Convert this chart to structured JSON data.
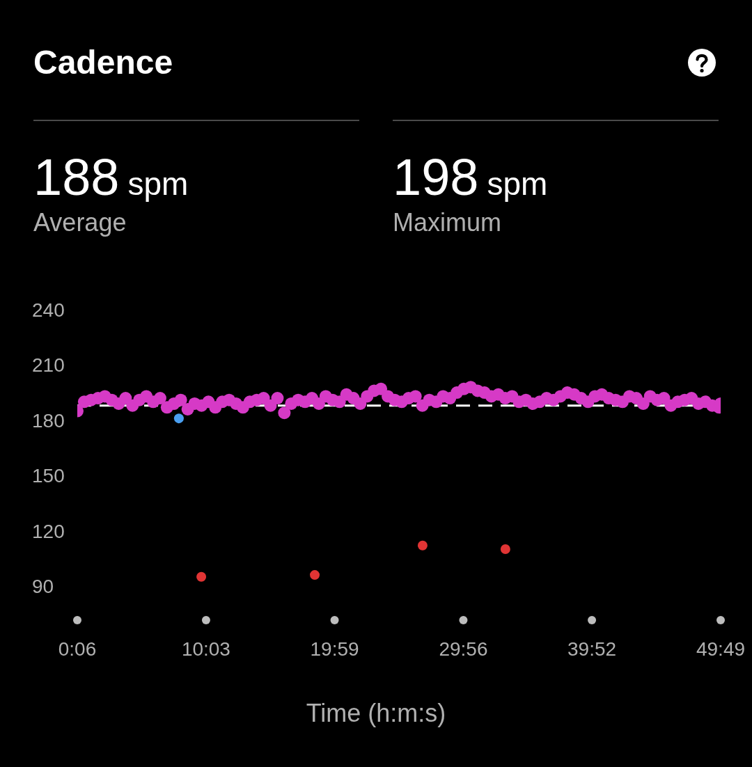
{
  "chart_data": {
    "type": "scatter",
    "title": "Cadence",
    "xlabel": "Time (h:m:s)",
    "annotations": [
      "188 spm",
      "Average",
      "198 spm",
      "Maximum"
    ],
    "xlim": [
      6,
      2989
    ],
    "xticks": [
      {
        "value": 6,
        "label": "0:06"
      },
      {
        "value": 603,
        "label": "10:03"
      },
      {
        "value": 1199,
        "label": "19:59"
      },
      {
        "value": 1796,
        "label": "29:56"
      },
      {
        "value": 2392,
        "label": "39:52"
      },
      {
        "value": 2989,
        "label": "49:49"
      }
    ],
    "ylim": [
      90,
      240
    ],
    "yticks": [
      90,
      120,
      150,
      180,
      210,
      240
    ],
    "marker": "circle",
    "ref_lines": [
      {
        "axis": "y",
        "value": 188,
        "color": "#ffffff",
        "line_style": "dashed"
      }
    ],
    "series": [
      {
        "color": "#d63ac6",
        "x": [
          6,
          38,
          70,
          102,
          134,
          166,
          198,
          230,
          262,
          294,
          326,
          358,
          390,
          422,
          454,
          486,
          518,
          550,
          582,
          614,
          646,
          678,
          710,
          742,
          774,
          806,
          838,
          870,
          902,
          934,
          966,
          998,
          1030,
          1062,
          1094,
          1126,
          1158,
          1190,
          1222,
          1254,
          1286,
          1318,
          1350,
          1382,
          1414,
          1446,
          1478,
          1510,
          1542,
          1574,
          1606,
          1638,
          1670,
          1702,
          1734,
          1766,
          1798,
          1830,
          1862,
          1894,
          1926,
          1958,
          1990,
          2022,
          2054,
          2086,
          2118,
          2150,
          2182,
          2214,
          2246,
          2278,
          2310,
          2342,
          2374,
          2406,
          2438,
          2470,
          2502,
          2534,
          2566,
          2598,
          2630,
          2662,
          2694,
          2726,
          2758,
          2790,
          2822,
          2854,
          2886,
          2918,
          2950,
          2982,
          2989
        ],
        "values": [
          185,
          190,
          191,
          192,
          193,
          191,
          189,
          192,
          188,
          191,
          193,
          190,
          192,
          187,
          189,
          191,
          186,
          189,
          188,
          190,
          187,
          190,
          191,
          189,
          187,
          190,
          191,
          192,
          188,
          192,
          184,
          189,
          191,
          190,
          192,
          189,
          193,
          191,
          190,
          194,
          192,
          189,
          193,
          196,
          197,
          193,
          191,
          190,
          192,
          193,
          188,
          191,
          190,
          193,
          192,
          195,
          197,
          198,
          196,
          195,
          193,
          194,
          192,
          193,
          190,
          191,
          189,
          190,
          192,
          191,
          193,
          195,
          194,
          192,
          190,
          193,
          194,
          192,
          191,
          190,
          193,
          192,
          189,
          193,
          191,
          192,
          188,
          190,
          191,
          192,
          189,
          190,
          188,
          187,
          189
        ]
      },
      {
        "color": "#4a9ff0",
        "x": [
          477
        ],
        "values": [
          181
        ]
      },
      {
        "color": "#e03434",
        "x": [
          581,
          1107,
          1607,
          1991
        ],
        "values": [
          95,
          96,
          112,
          110
        ]
      }
    ]
  }
}
